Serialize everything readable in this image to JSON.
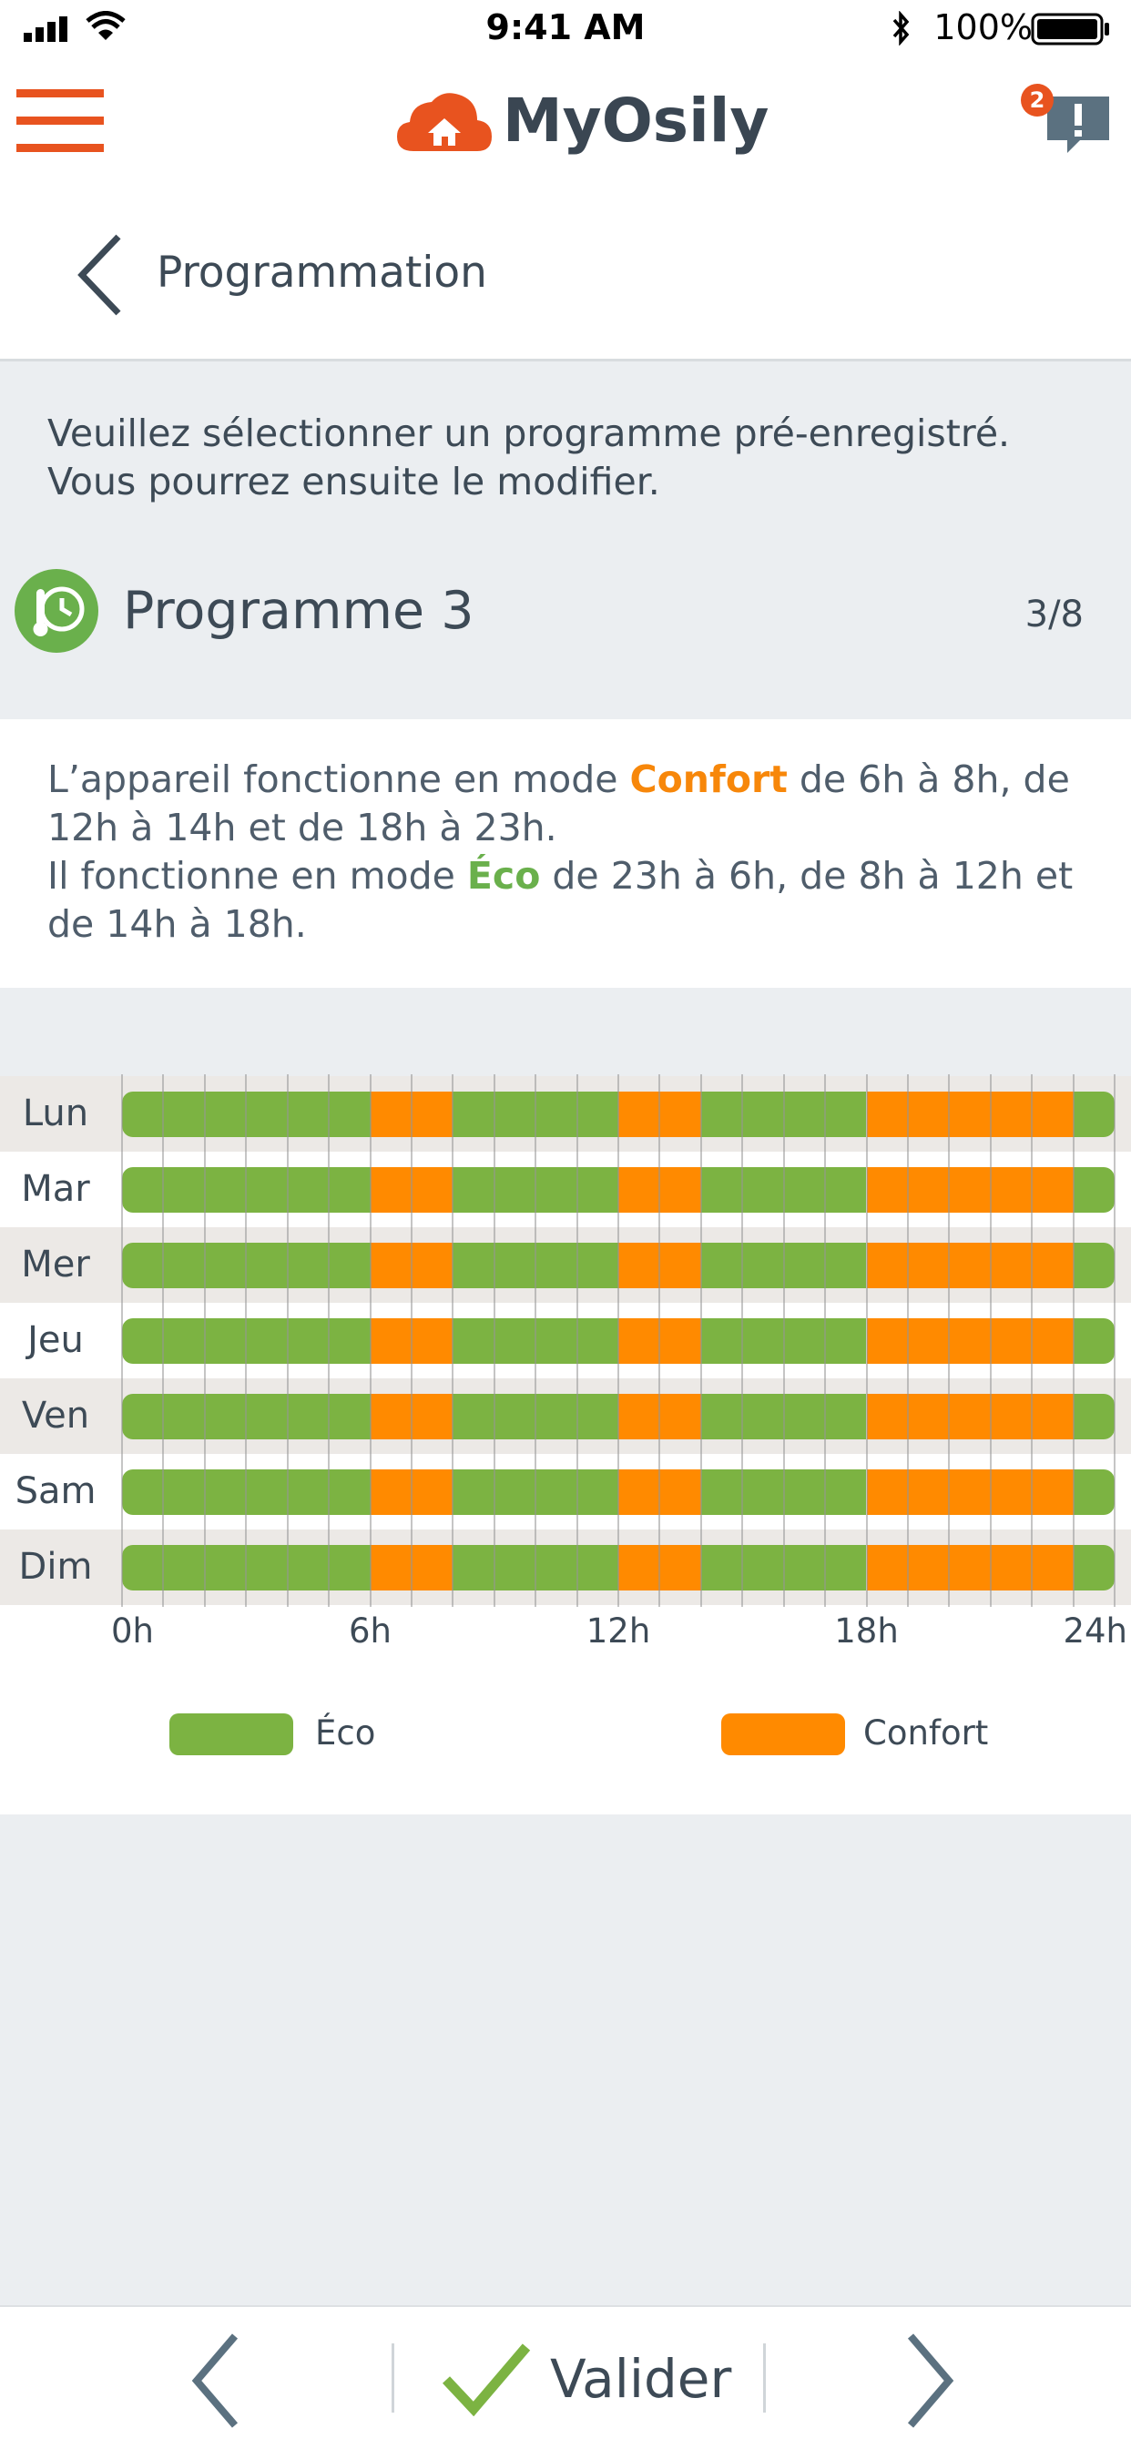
{
  "status_bar": {
    "time": "9:41 AM",
    "battery": "100%"
  },
  "header": {
    "brand": "MyOsily",
    "notification_count": "2"
  },
  "title_bar": {
    "title": "Programmation"
  },
  "intro": {
    "line1": "Veuillez sélectionner un programme pré-enregistré.",
    "line2": "Vous pourrez ensuite le modifier."
  },
  "program": {
    "name": "Programme 3",
    "counter": "3/8"
  },
  "description": {
    "p1_before": "L’appareil fonctionne en mode ",
    "p1_mode": "Confort",
    "p1_after": " de 6h à 8h, de 12h à 14h et de 18h à 23h.",
    "p2_before": "Il fonctionne en mode ",
    "p2_mode": "Éco",
    "p2_after": " de 23h à 6h, de 8h à 12h et de 14h à 18h."
  },
  "chart_data": {
    "type": "heatmap",
    "days": [
      "Lun",
      "Mar",
      "Mer",
      "Jeu",
      "Ven",
      "Sam",
      "Dim"
    ],
    "x_ticks": [
      "0h",
      "6h",
      "12h",
      "18h",
      "24h"
    ],
    "x_range": [
      0,
      24
    ],
    "modes": {
      "Éco": "#7cb342",
      "Confort": "#ff8a00"
    },
    "schedule": [
      {
        "mode": "Éco",
        "start": 0,
        "end": 6
      },
      {
        "mode": "Confort",
        "start": 6,
        "end": 8
      },
      {
        "mode": "Éco",
        "start": 8,
        "end": 12
      },
      {
        "mode": "Confort",
        "start": 12,
        "end": 14
      },
      {
        "mode": "Éco",
        "start": 14,
        "end": 18
      },
      {
        "mode": "Confort",
        "start": 18,
        "end": 23
      },
      {
        "mode": "Éco",
        "start": 23,
        "end": 24
      }
    ],
    "legend": [
      "Éco",
      "Confort"
    ]
  },
  "bottom_bar": {
    "valider_label": "Valider"
  },
  "colors": {
    "accent": "#e8531f",
    "eco": "#7cb342",
    "confort": "#ff8a00",
    "text": "#3d4a56"
  }
}
